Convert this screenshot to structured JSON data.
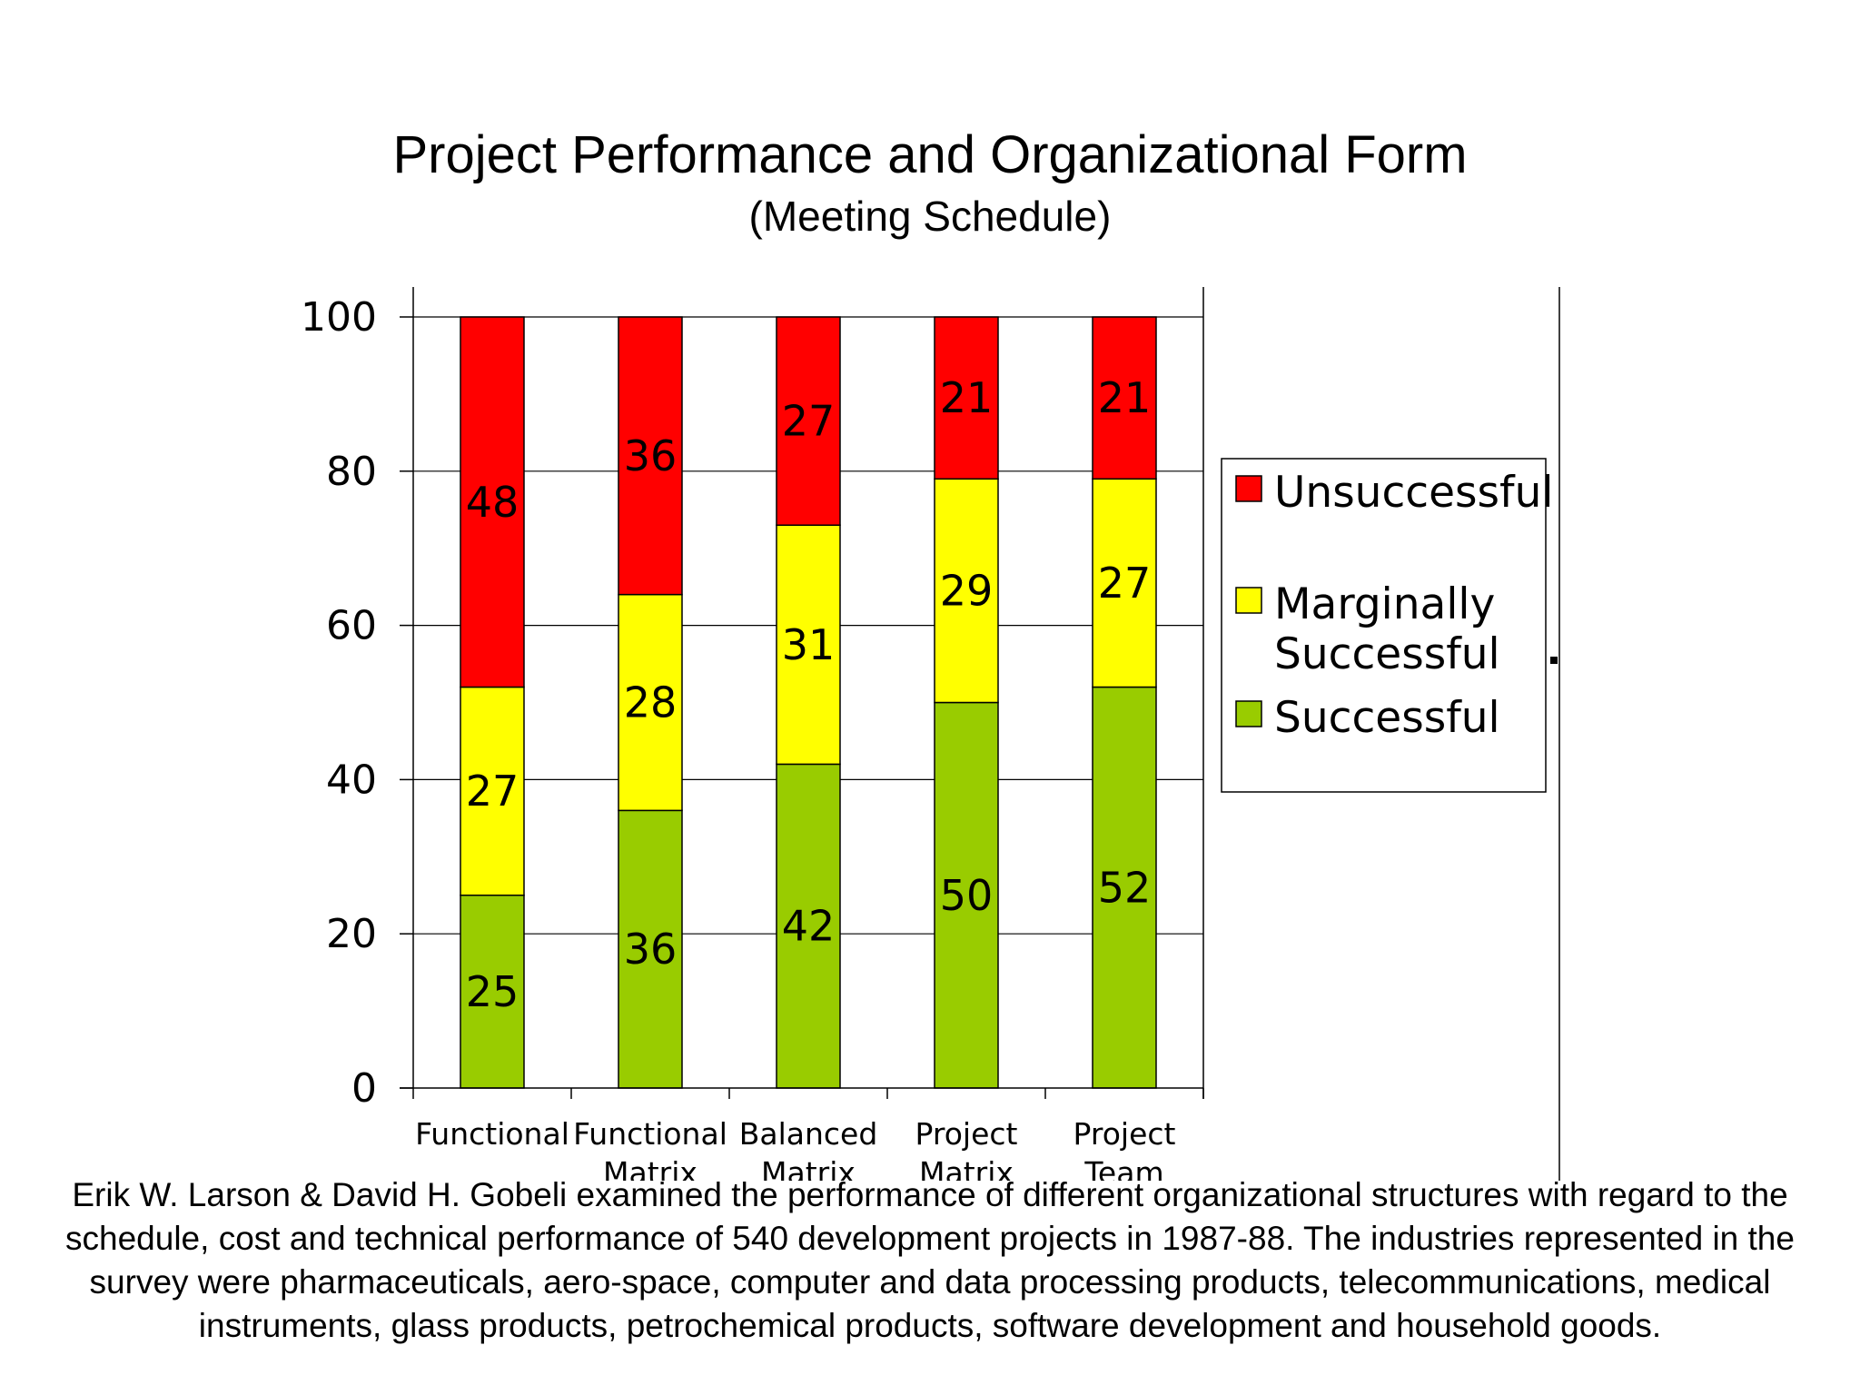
{
  "title": "Project Performance and Organizational Form",
  "subtitle": "(Meeting Schedule)",
  "chart_data": {
    "type": "bar",
    "stacked": true,
    "categories": [
      [
        "Functional"
      ],
      [
        "Functional",
        "Matrix"
      ],
      [
        "Balanced",
        "Matrix"
      ],
      [
        "Project",
        "Matrix"
      ],
      [
        "Project",
        "Team"
      ]
    ],
    "series": [
      {
        "name": "Successful",
        "color": "#99cc00",
        "values": [
          25,
          36,
          42,
          50,
          52
        ]
      },
      {
        "name": "Marginally Successful",
        "color": "#ffff00",
        "values": [
          27,
          28,
          31,
          29,
          27
        ]
      },
      {
        "name": "Unsuccessful",
        "color": "#ff0000",
        "values": [
          48,
          36,
          27,
          21,
          21
        ]
      }
    ],
    "legend_order": [
      {
        "series": 2,
        "lines": [
          "Unsuccessful"
        ]
      },
      {
        "series": 1,
        "lines": [
          "Marginally",
          "Successful"
        ]
      },
      {
        "series": 0,
        "lines": [
          "Successful"
        ]
      }
    ],
    "ylim": [
      0,
      100
    ],
    "yticks": [
      0,
      20,
      40,
      60,
      80,
      100
    ],
    "grid": true,
    "legend_position": "right"
  },
  "caption": "Erik W. Larson & David H. Gobeli  examined the performance of different organizational structures with regard to the schedule, cost and technical performance of 540 development projects in 1987-88. The industries represented in the survey were pharmaceuticals, aero-space, computer and data processing products, telecommunications, medical instruments, glass products, petrochemical products, software development and household goods."
}
